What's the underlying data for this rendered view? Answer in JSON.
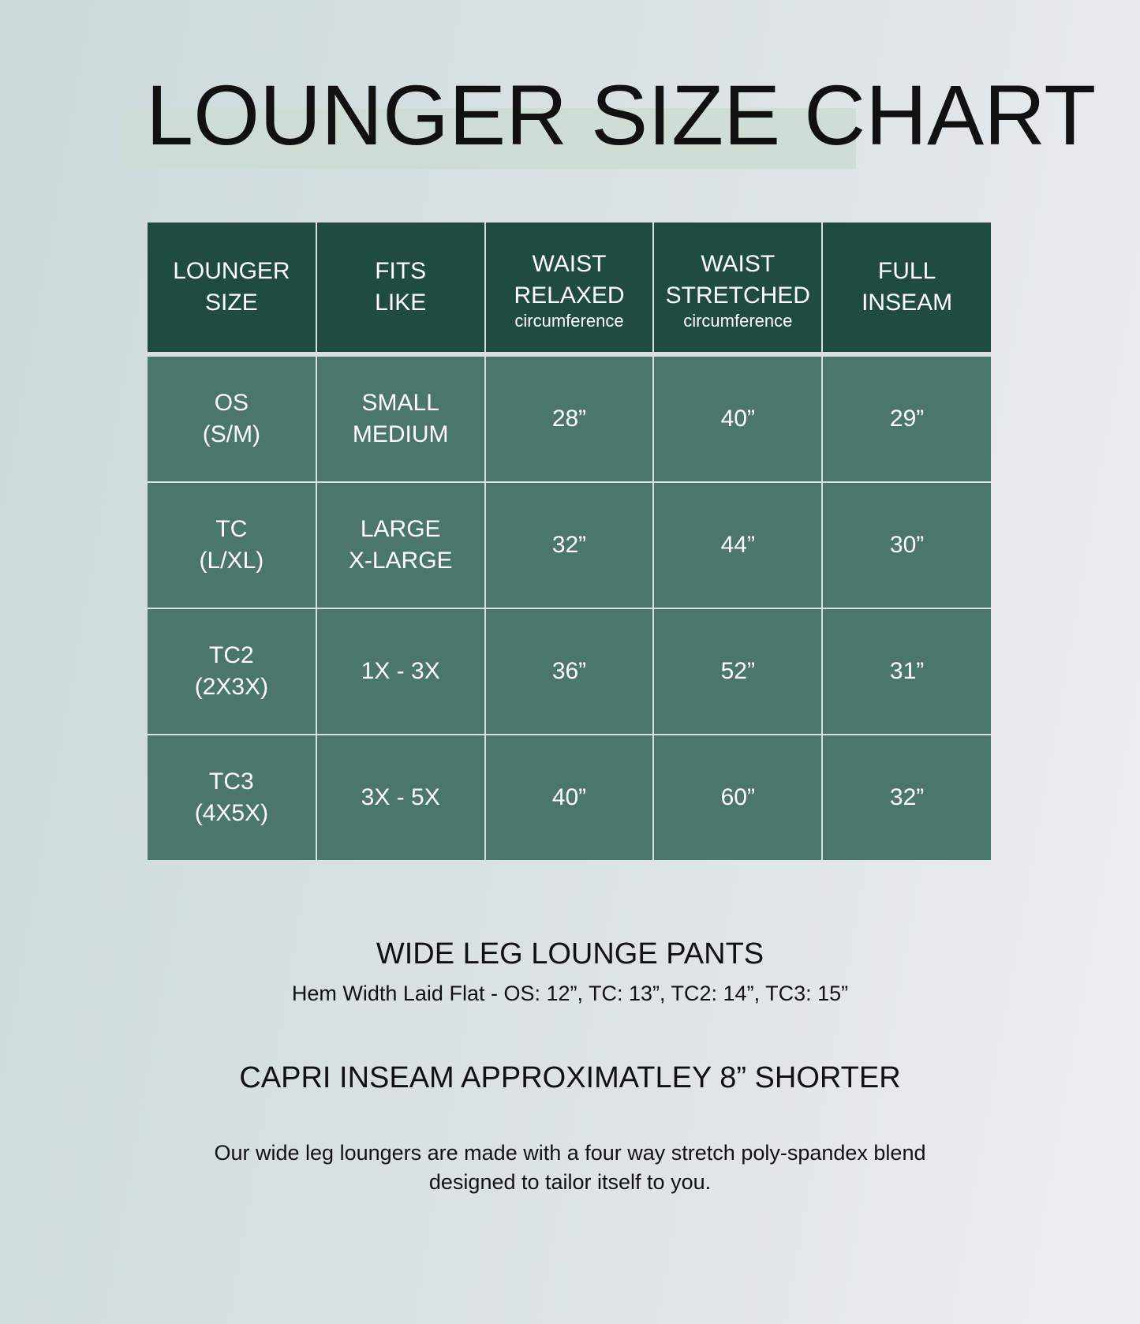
{
  "title": "LOUNGER SIZE CHART",
  "table": {
    "headers": [
      {
        "l1": "LOUNGER",
        "l2": "SIZE",
        "sub": ""
      },
      {
        "l1": "FITS",
        "l2": "LIKE",
        "sub": ""
      },
      {
        "l1": "WAIST",
        "l2": "RELAXED",
        "sub": "circumference"
      },
      {
        "l1": "WAIST",
        "l2": "STRETCHED",
        "sub": "circumference"
      },
      {
        "l1": "FULL",
        "l2": "INSEAM",
        "sub": ""
      }
    ],
    "rows": [
      {
        "size": [
          "OS",
          "(S/M)"
        ],
        "fits": [
          "SMALL",
          "MEDIUM"
        ],
        "relaxed": "28”",
        "stretched": "40”",
        "inseam": "29”"
      },
      {
        "size": [
          "TC",
          "(L/XL)"
        ],
        "fits": [
          "LARGE",
          "X-LARGE"
        ],
        "relaxed": "32”",
        "stretched": "44”",
        "inseam": "30”"
      },
      {
        "size": [
          "TC2",
          "(2X3X)"
        ],
        "fits": [
          "1X - 3X",
          ""
        ],
        "relaxed": "36”",
        "stretched": "52”",
        "inseam": "31”"
      },
      {
        "size": [
          "TC3",
          "(4X5X)"
        ],
        "fits": [
          "3X - 5X",
          ""
        ],
        "relaxed": "40”",
        "stretched": "60”",
        "inseam": "32”"
      }
    ]
  },
  "wide_leg": {
    "heading": "WIDE LEG LOUNGE PANTS",
    "hem": "Hem Width Laid Flat - OS: 12”, TC: 13”, TC2: 14”, TC3: 15”"
  },
  "capri": "CAPRI INSEAM APPROXIMATLEY 8” SHORTER",
  "description": [
    "Our wide leg loungers are made with a four way stretch poly-spandex blend",
    "designed to tailor itself to you."
  ],
  "colors": {
    "header": "#1f4b43",
    "cell": "#4b766d",
    "highlight": "#ccdcd2"
  }
}
